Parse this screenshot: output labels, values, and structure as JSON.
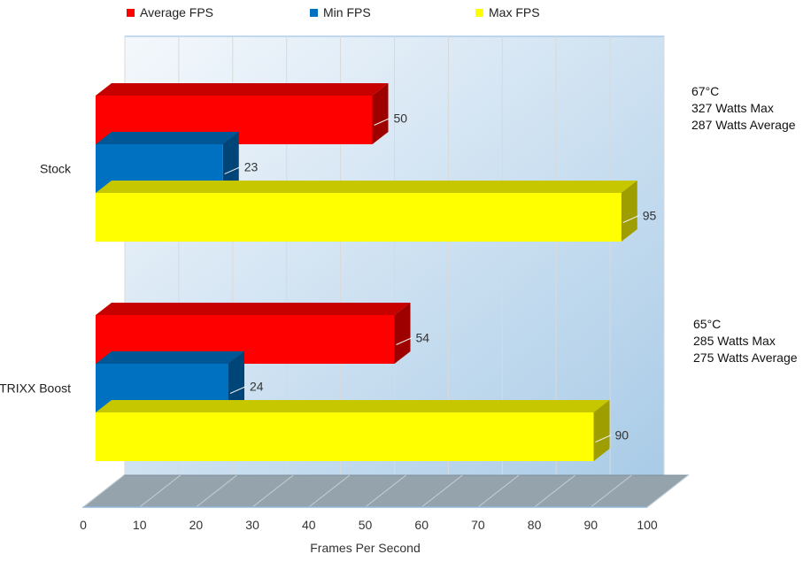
{
  "chart_data": {
    "type": "bar",
    "orientation": "horizontal",
    "style": "3d",
    "categories": [
      "Stock",
      "TRIXX Boost"
    ],
    "series": [
      {
        "name": "Average FPS",
        "color": "#ff0000",
        "values": [
          50,
          54
        ]
      },
      {
        "name": "Min FPS",
        "color": "#0070c0",
        "values": [
          23,
          24
        ]
      },
      {
        "name": "Max FPS",
        "color": "#ffff00",
        "values": [
          95,
          90
        ]
      }
    ],
    "xlabel": "Frames Per Second",
    "xlim": [
      0,
      100
    ],
    "xticks": [
      "0",
      "10",
      "20",
      "30",
      "40",
      "50",
      "60",
      "70",
      "80",
      "90",
      "100"
    ],
    "grid": true,
    "legend_position": "top",
    "annotations": [
      {
        "category": "Stock",
        "lines": [
          "67°C",
          "327 Watts Max",
          "287 Watts Average"
        ]
      },
      {
        "category": "TRIXX Boost",
        "lines": [
          "65°C",
          "285 Watts Max",
          "275 Watts Average"
        ]
      }
    ]
  }
}
